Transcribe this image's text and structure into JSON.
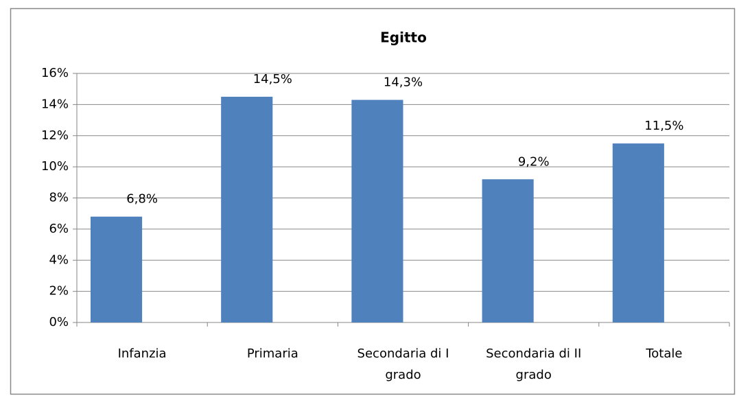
{
  "chart_data": {
    "type": "bar",
    "title": "Egitto",
    "categories": [
      "Infanzia",
      "Primaria",
      "Secondaria di I grado",
      "Secondaria di II grado",
      "Totale"
    ],
    "values": [
      6.8,
      14.5,
      14.3,
      9.2,
      11.5
    ],
    "value_labels": [
      "6,8%",
      "14,5%",
      "14,3%",
      "9,2%",
      "11,5%"
    ],
    "color": "#4f81bd",
    "ylim": [
      0,
      16
    ],
    "yticks": [
      {
        "value": 0,
        "label": "0%"
      },
      {
        "value": 2,
        "label": "2%"
      },
      {
        "value": 4,
        "label": "4%"
      },
      {
        "value": 6,
        "label": "6%"
      },
      {
        "value": 8,
        "label": "8%"
      },
      {
        "value": 10,
        "label": "10%"
      },
      {
        "value": 12,
        "label": "12%"
      },
      {
        "value": 14,
        "label": "14%"
      },
      {
        "value": 16,
        "label": "16%"
      }
    ],
    "grid": true
  }
}
